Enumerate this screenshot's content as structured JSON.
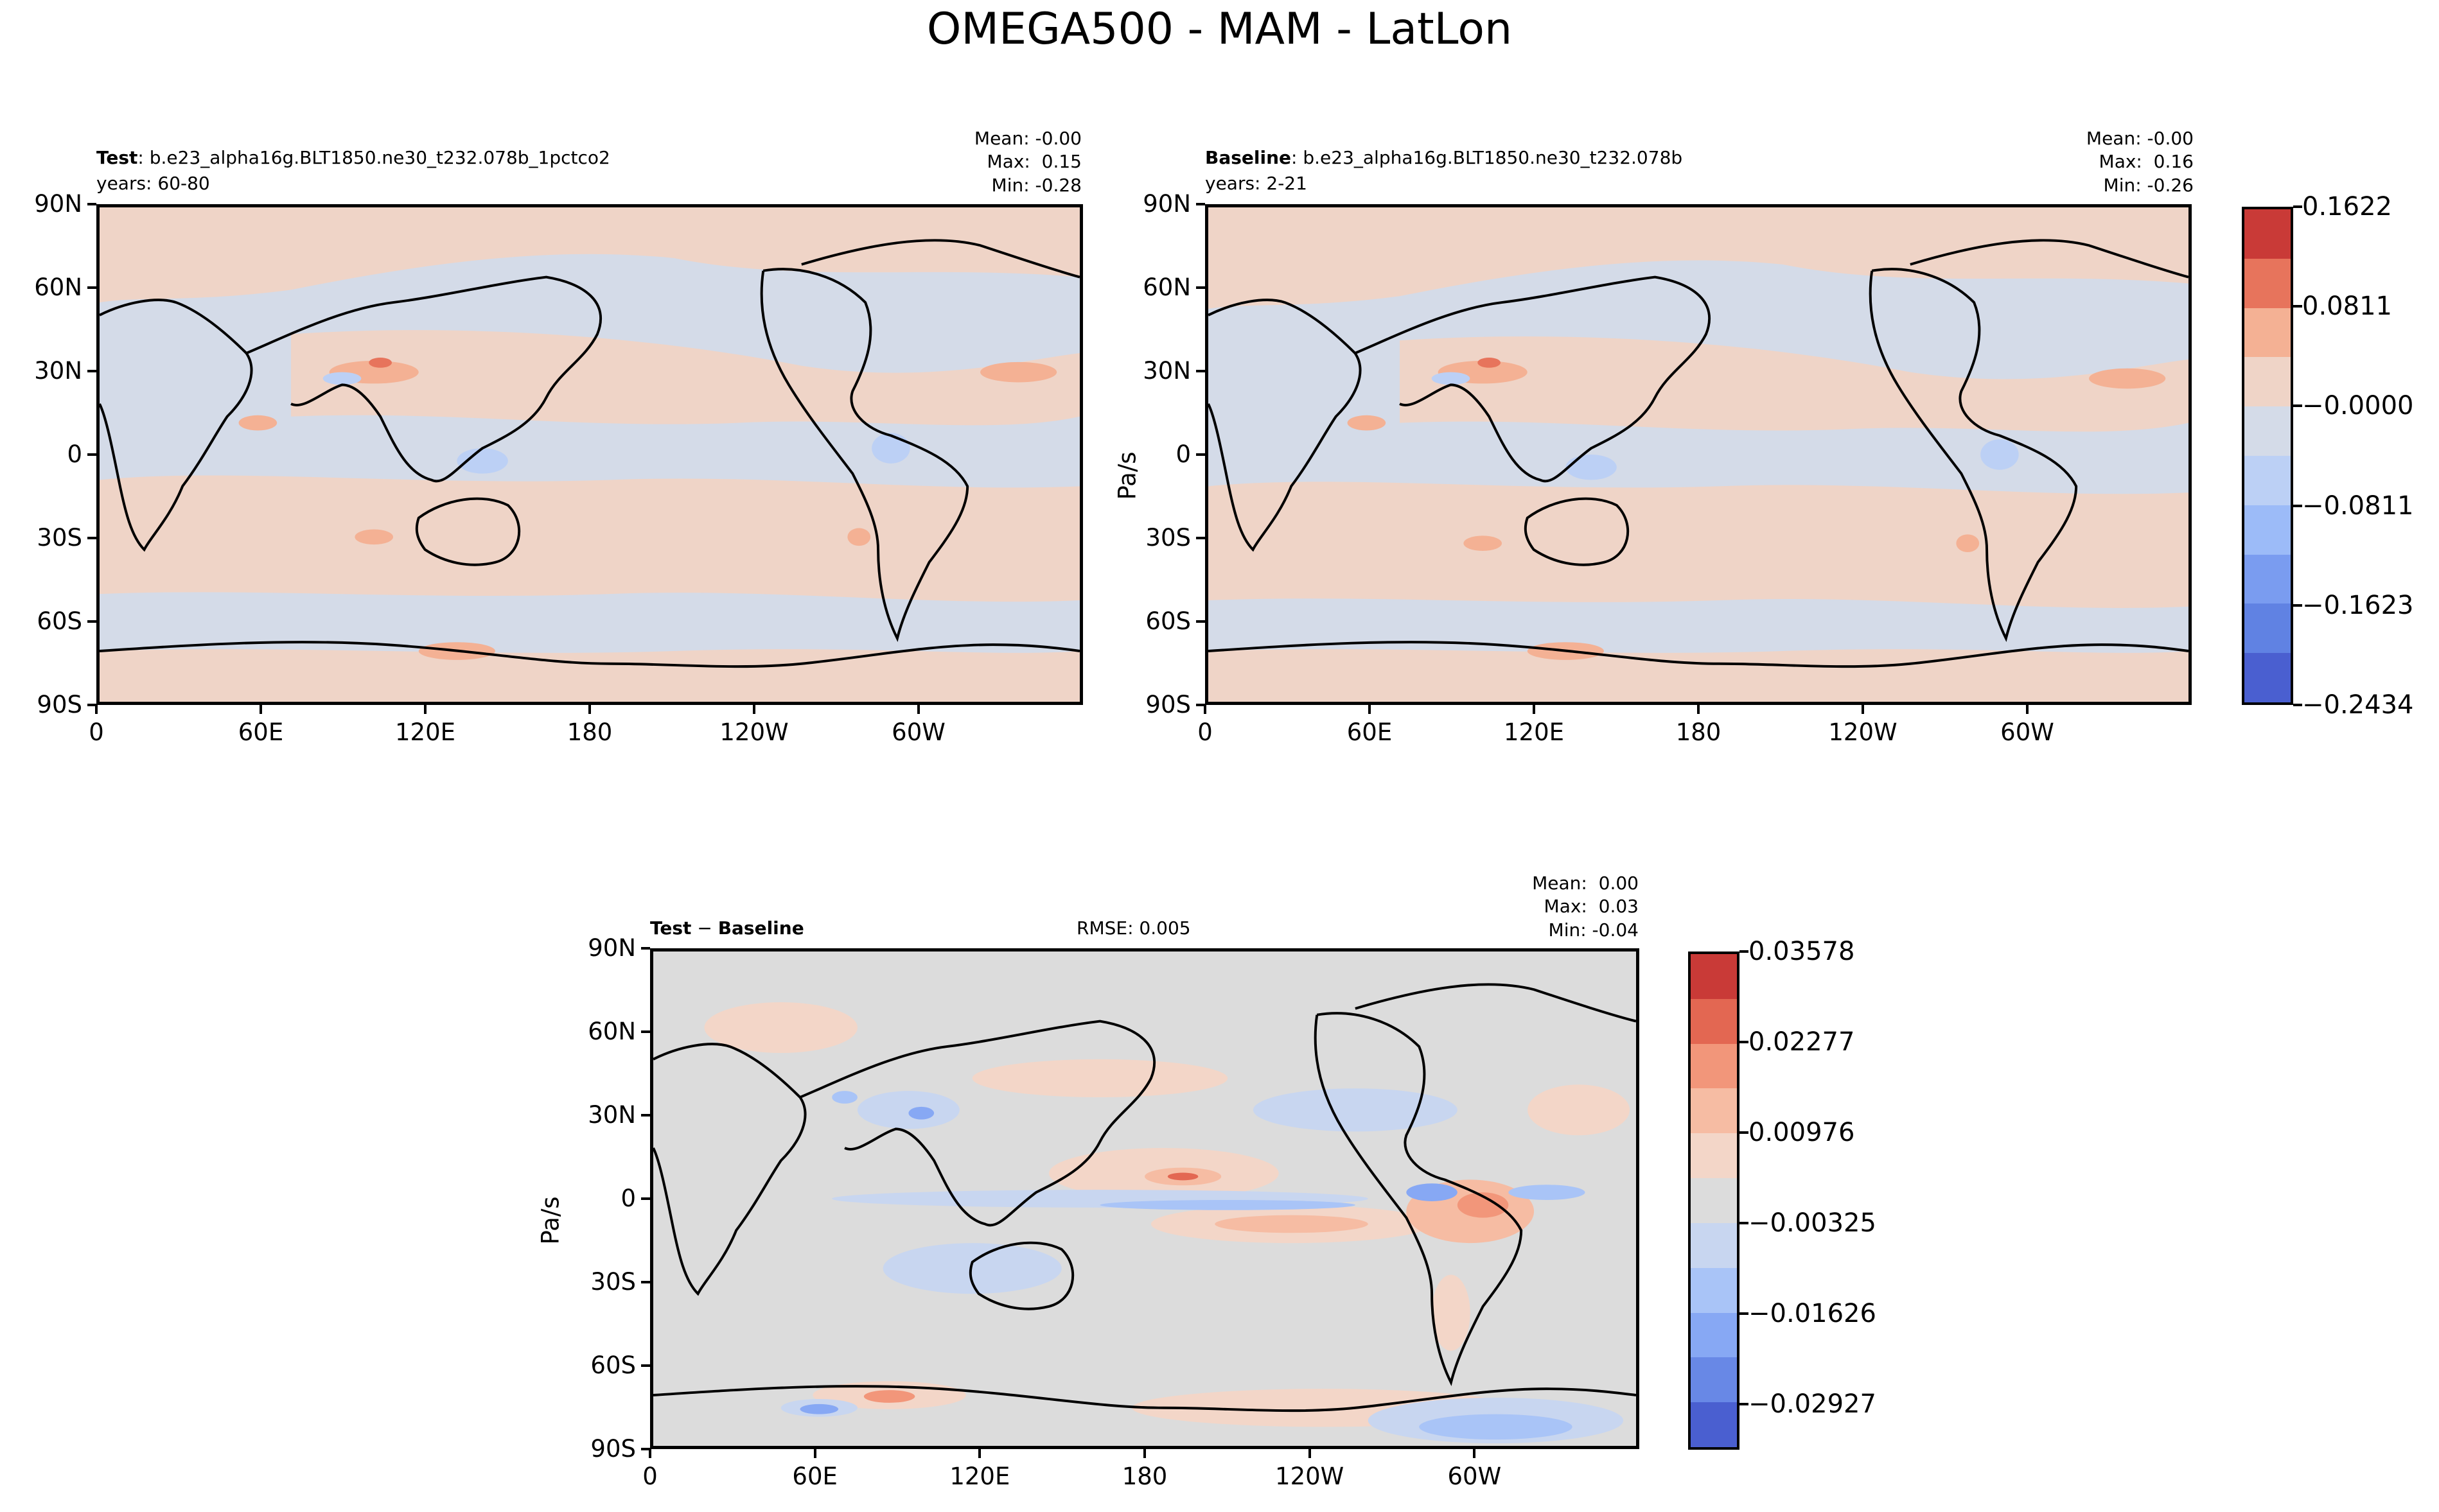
{
  "figure": {
    "title": "OMEGA500 - MAM - LatLon"
  },
  "axes": {
    "lat_ticks": [
      "90N",
      "60N",
      "30N",
      "0",
      "30S",
      "60S",
      "90S"
    ],
    "lon_ticks": [
      "0",
      "60E",
      "120E",
      "180",
      "120W",
      "60W"
    ],
    "units_label": "Pa/s"
  },
  "panels": {
    "test": {
      "name_bold": "Test",
      "name_rest": ": b.e23_alpha16g.BLT1850.ne30_t232.078b_1pctco2",
      "years": "years: 60-80",
      "mean": "Mean: -0.00",
      "max": "Max:  0.15",
      "min": "Min: -0.28"
    },
    "baseline": {
      "name_bold": "Baseline",
      "name_rest": ": b.e23_alpha16g.BLT1850.ne30_t232.078b",
      "years": "years: 2-21",
      "mean": "Mean: -0.00",
      "max": "Max:  0.16",
      "min": "Min: -0.26"
    },
    "diff": {
      "name_bold": "Test",
      "name_mid": " − ",
      "name_bold2": "Baseline",
      "rmse": "RMSE: 0.005",
      "mean": "Mean:  0.00",
      "max": "Max:  0.03",
      "min": "Min: -0.04"
    }
  },
  "colorbar_main": {
    "labels": [
      "0.1622",
      "0.0811",
      "−0.0000",
      "−0.0811",
      "−0.1623",
      "−0.2434"
    ],
    "colors": [
      "#c93a37",
      "#e7745c",
      "#f4b194",
      "#efd4c7",
      "#d4dbe8",
      "#bcd0f5",
      "#9cbbf8",
      "#7a9cf0",
      "#6082e3",
      "#4a5fd0"
    ]
  },
  "colorbar_diff": {
    "labels": [
      "0.03578",
      "0.02277",
      "0.00976",
      "−0.00325",
      "−0.01626",
      "−0.02927"
    ],
    "colors": [
      "#c93a37",
      "#e36752",
      "#f2967a",
      "#f6bca3",
      "#f3d6c8",
      "#dcdcdc",
      "#c8d6f0",
      "#a9c4f7",
      "#87a8f4",
      "#6888e6",
      "#4a5fd0"
    ]
  },
  "map_colors": {
    "positive_bg": "#efd4c7",
    "negative_bg": "#d4dbe8",
    "diff_bg": "#dcdcdc",
    "land": "#000000"
  }
}
